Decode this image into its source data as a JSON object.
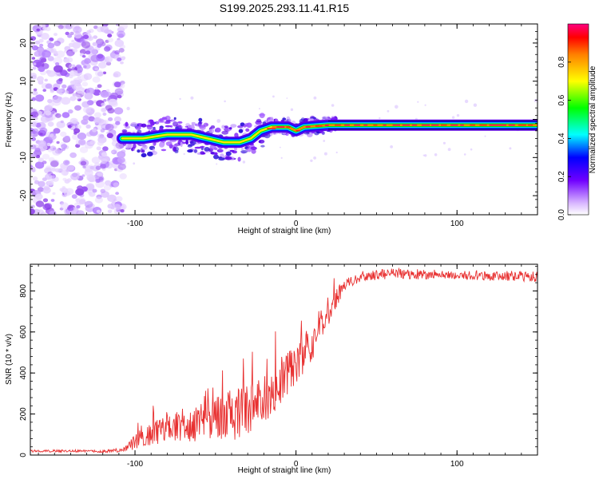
{
  "title": "S199.2025.293.11.41.R15",
  "colors": {
    "snr_line": "#e83030",
    "axis": "#000000",
    "spectrogram_noise": "#8a2be2",
    "tone": "#ff2a2a"
  },
  "chart_data": [
    {
      "type": "heatmap",
      "name": "spectrogram",
      "title": "S199.2025.293.11.41.R15",
      "xlabel": "Height of straight line (km)",
      "ylabel": "Frequency (Hz)",
      "xlim": [
        -165,
        150
      ],
      "ylim": [
        -25,
        25
      ],
      "x_ticks": [
        -100,
        0,
        100
      ],
      "y_ticks": [
        -20,
        -10,
        0,
        10,
        20
      ],
      "x_tick_labels": [
        "-100",
        "0",
        "100"
      ],
      "y_tick_labels": [
        "-20",
        "-10",
        "0",
        "10",
        "20"
      ],
      "noise_region_x": [
        -165,
        -107
      ],
      "tone_path": [
        {
          "x": -108,
          "f": -5
        },
        {
          "x": -95,
          "f": -5
        },
        {
          "x": -80,
          "f": -4
        },
        {
          "x": -65,
          "f": -4
        },
        {
          "x": -55,
          "f": -5
        },
        {
          "x": -45,
          "f": -6
        },
        {
          "x": -35,
          "f": -6
        },
        {
          "x": -28,
          "f": -5
        },
        {
          "x": -22,
          "f": -3
        },
        {
          "x": -15,
          "f": -2
        },
        {
          "x": -5,
          "f": -2
        },
        {
          "x": 0,
          "f": -3
        },
        {
          "x": 5,
          "f": -2
        },
        {
          "x": 20,
          "f": -1.5
        },
        {
          "x": 150,
          "f": -1.5
        }
      ],
      "colorbar": {
        "label": "Normalized spectral amplitude",
        "range": [
          0,
          1
        ],
        "ticks": [
          0.0,
          0.2,
          0.4,
          0.6,
          0.8
        ],
        "tick_labels": [
          "0.0",
          "0.2",
          "0.4",
          "0.6",
          "0.8"
        ]
      }
    },
    {
      "type": "line",
      "name": "snr",
      "xlabel": "Height of straight line (km)",
      "ylabel": "SNR (10 * v/v)",
      "xlim": [
        -165,
        150
      ],
      "ylim": [
        0,
        930
      ],
      "x_ticks": [
        -100,
        0,
        100
      ],
      "y_ticks": [
        0,
        200,
        400,
        600,
        800
      ],
      "x_tick_labels": [
        "-100",
        "0",
        "100"
      ],
      "y_tick_labels": [
        "0",
        "200",
        "400",
        "600",
        "800"
      ],
      "x": [
        -165,
        -140,
        -120,
        -107,
        -100,
        -90,
        -80,
        -70,
        -60,
        -50,
        -40,
        -30,
        -20,
        -10,
        0,
        10,
        20,
        30,
        40,
        60,
        80,
        100,
        120,
        150
      ],
      "y": [
        20,
        20,
        18,
        25,
        60,
        110,
        130,
        150,
        150,
        170,
        190,
        230,
        270,
        350,
        450,
        560,
        700,
        830,
        870,
        885,
        880,
        880,
        875,
        870
      ],
      "noise_amplitude": [
        6,
        6,
        6,
        12,
        40,
        60,
        70,
        80,
        90,
        110,
        130,
        130,
        130,
        120,
        110,
        100,
        70,
        30,
        25,
        25,
        25,
        25,
        25,
        25
      ]
    }
  ]
}
